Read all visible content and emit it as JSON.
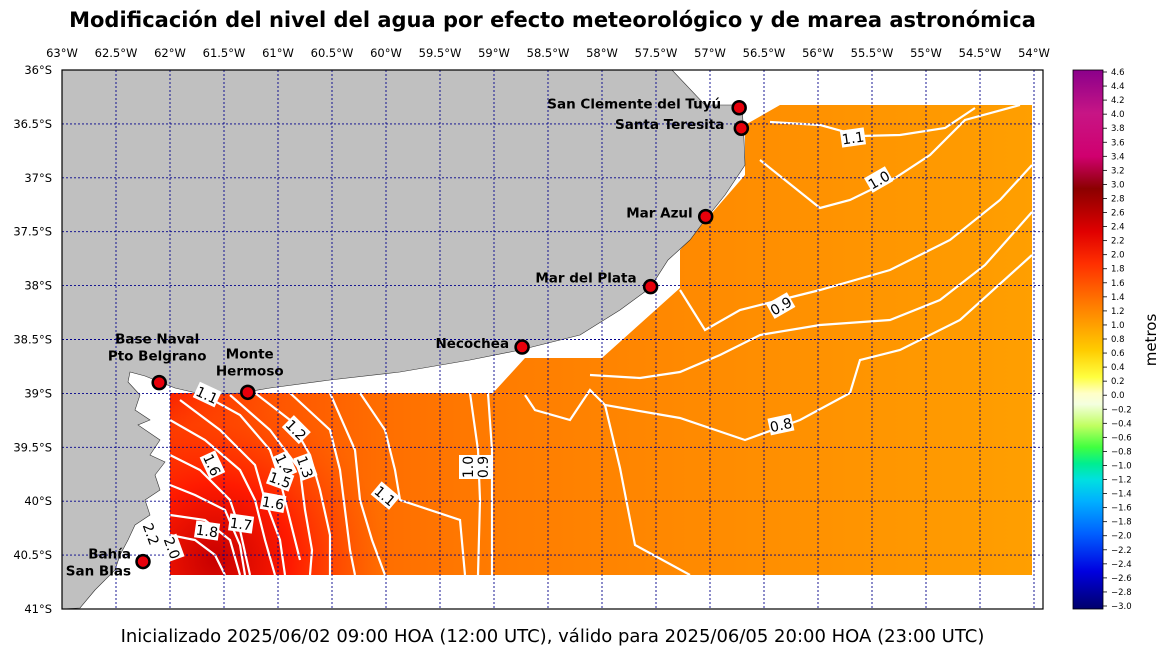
{
  "title": "Modificación del nivel del agua por efecto meteorológico y de marea astronómica",
  "footer": "Inicializado 2025/06/02 09:00 HOA (12:00 UTC), válido para 2025/06/05 20:00 HOA (23:00 UTC)",
  "lon_ticks": [
    "63°W",
    "62.5°W",
    "62°W",
    "61.5°W",
    "61°W",
    "60.5°W",
    "60°W",
    "59.5°W",
    "59°W",
    "58.5°W",
    "58°W",
    "57.5°W",
    "57°W",
    "56.5°W",
    "56°W",
    "55.5°W",
    "55°W",
    "54.5°W",
    "54°W"
  ],
  "lat_ticks": [
    "36°S",
    "36.5°S",
    "37°S",
    "37.5°S",
    "38°S",
    "38.5°S",
    "39°S",
    "39.5°S",
    "40°S",
    "40.5°S",
    "41°S"
  ],
  "stations": [
    {
      "name": "San Clemente del Tuyú",
      "lon": -56.73,
      "lat": -36.35
    },
    {
      "name": "Santa Teresita",
      "lon": -56.71,
      "lat": -36.54
    },
    {
      "name": "Mar Azul",
      "lon": -57.04,
      "lat": -37.36
    },
    {
      "name": "Mar del Plata",
      "lon": -57.55,
      "lat": -38.01
    },
    {
      "name": "Necochea",
      "lon": -58.74,
      "lat": -38.57
    },
    {
      "name": "Monte\nHermoso",
      "lon": -61.28,
      "lat": -38.99
    },
    {
      "name": "Base Naval\nPto Belgrano",
      "lon": -62.1,
      "lat": -38.9
    },
    {
      "name": "Bahía\nSan Blas",
      "lon": -62.25,
      "lat": -40.56
    }
  ],
  "contour_labels": [
    "1.1",
    "1.0",
    "0.9",
    "0.8",
    "1.0",
    "0.9",
    "1.1",
    "1.2",
    "1.3",
    "1.4",
    "1.5",
    "1.6",
    "1.6",
    "1.7",
    "1.8",
    "1.1",
    "2.2",
    "2.0"
  ],
  "colorbar": {
    "label": "metros",
    "ticks": [
      "4.6",
      "4.4",
      "4.2",
      "4.0",
      "3.8",
      "3.6",
      "3.4",
      "3.2",
      "3.0",
      "2.8",
      "2.6",
      "2.4",
      "2.2",
      "2.0",
      "1.8",
      "1.6",
      "1.4",
      "1.2",
      "1.0",
      "0.8",
      "0.6",
      "0.4",
      "0.2",
      "0.0",
      "−0.2",
      "−0.4",
      "−0.6",
      "−0.8",
      "−1.0",
      "−1.2",
      "−1.4",
      "−1.6",
      "−1.8",
      "−2.0",
      "−2.2",
      "−2.4",
      "−2.6",
      "−2.8",
      "−3.0"
    ]
  },
  "colors": {
    "land": "#c0c0c0",
    "grid": "#00008b",
    "station_fill": "#e8000b",
    "contour": "#ffffff"
  }
}
